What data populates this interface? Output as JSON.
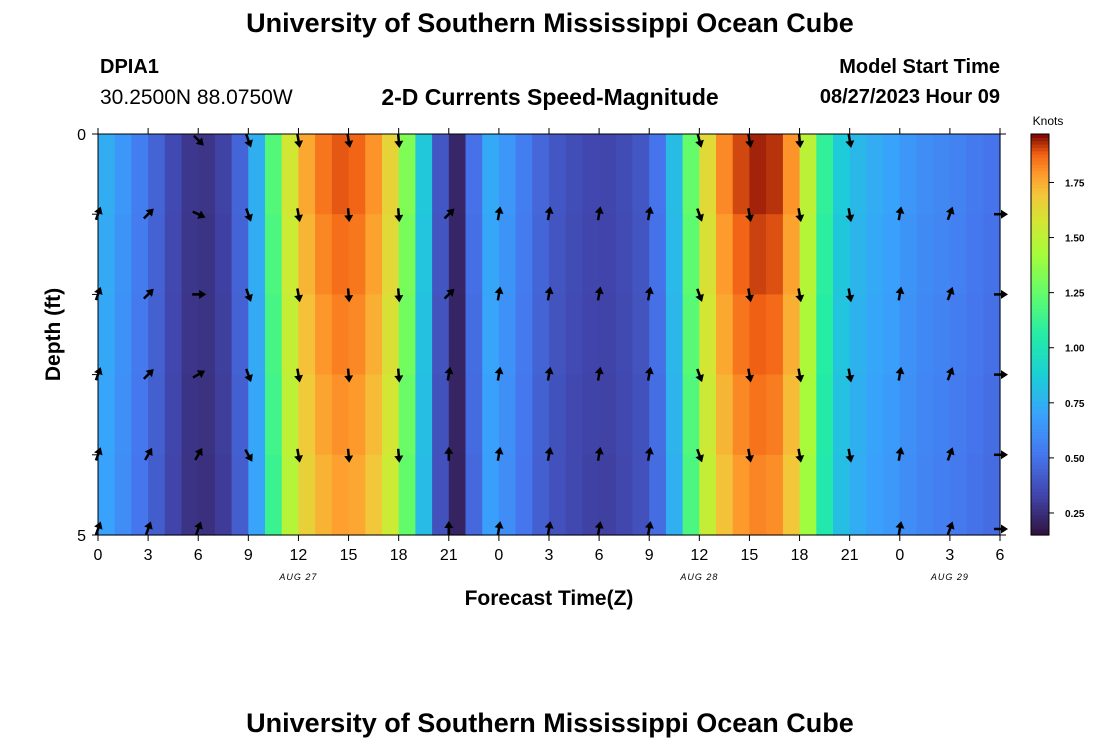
{
  "page": {
    "title_top": "University of Southern Mississippi Ocean Cube",
    "title_bottom": "University of Southern Mississippi Ocean Cube",
    "station_id": "DPIA1",
    "coordinates": "30.2500N  88.0750W",
    "subtitle": "2-D Currents Speed-Magnitude",
    "model_start_label": "Model Start Time",
    "model_start_value": "08/27/2023 Hour 09"
  },
  "colors": {
    "background": "#ffffff",
    "axis": "#000000",
    "arrow": "#000000"
  },
  "chart_data": {
    "type": "heatmap",
    "title": "2-D Currents Speed-Magnitude",
    "xlabel": "Forecast Time(Z)",
    "ylabel": "Depth (ft)",
    "x_ticks": [
      "0",
      "3",
      "6",
      "9",
      "12",
      "15",
      "18",
      "21",
      "0",
      "3",
      "6",
      "9",
      "12",
      "15",
      "18",
      "21",
      "0",
      "3",
      "6"
    ],
    "date_labels": [
      {
        "label": "AUG 27",
        "at_hour": 12
      },
      {
        "label": "AUG 28",
        "at_hour": 36
      },
      {
        "label": "AUG 29",
        "at_hour": 51
      }
    ],
    "x_range": [
      0,
      54
    ],
    "y_range": [
      0,
      5
    ],
    "y_ticks": [
      "0",
      "5"
    ],
    "depth_rows": 5,
    "colorbar": {
      "label": "Knots",
      "min": 0.15,
      "max": 1.97,
      "ticks": [
        0.25,
        0.5,
        0.75,
        1.0,
        1.25,
        1.5,
        1.75
      ],
      "tick_labels": [
        "0.25",
        "0.50",
        "0.75",
        "1.00",
        "1.25",
        "1.50",
        "1.75"
      ]
    },
    "speed_profile_knots": [
      [
        0,
        0.78
      ],
      [
        1,
        0.7
      ],
      [
        2,
        0.6
      ],
      [
        3,
        0.5
      ],
      [
        4,
        0.4
      ],
      [
        5,
        0.3
      ],
      [
        6,
        0.27
      ],
      [
        7,
        0.28
      ],
      [
        8,
        0.36
      ],
      [
        9,
        0.55
      ],
      [
        10,
        0.95
      ],
      [
        11,
        1.45
      ],
      [
        12,
        1.7
      ],
      [
        13,
        1.82
      ],
      [
        14,
        1.88
      ],
      [
        15,
        1.9
      ],
      [
        16,
        1.85
      ],
      [
        17,
        1.75
      ],
      [
        18,
        1.55
      ],
      [
        19,
        1.1
      ],
      [
        20,
        0.6
      ],
      [
        21,
        0.2
      ],
      [
        22,
        0.25
      ],
      [
        23,
        0.75
      ],
      [
        24,
        0.7
      ],
      [
        25,
        0.6
      ],
      [
        26,
        0.5
      ],
      [
        27,
        0.42
      ],
      [
        28,
        0.38
      ],
      [
        29,
        0.35
      ],
      [
        30,
        0.33
      ],
      [
        31,
        0.34
      ],
      [
        32,
        0.38
      ],
      [
        33,
        0.42
      ],
      [
        34,
        0.6
      ],
      [
        35,
        1.0
      ],
      [
        36,
        1.5
      ],
      [
        37,
        1.75
      ],
      [
        38,
        1.88
      ],
      [
        39,
        1.93
      ],
      [
        40,
        1.95
      ],
      [
        41,
        1.9
      ],
      [
        42,
        1.7
      ],
      [
        43,
        1.3
      ],
      [
        44,
        0.9
      ],
      [
        45,
        0.82
      ],
      [
        46,
        0.75
      ],
      [
        47,
        0.72
      ],
      [
        48,
        0.68
      ],
      [
        49,
        0.62
      ],
      [
        50,
        0.6
      ],
      [
        51,
        0.58
      ],
      [
        52,
        0.55
      ],
      [
        53,
        0.52
      ],
      [
        54,
        0.5
      ]
    ],
    "arrow_columns_hours": [
      0,
      3,
      6,
      9,
      12,
      15,
      18,
      21,
      24,
      27,
      30,
      33,
      36,
      39,
      42,
      45,
      48,
      51,
      54
    ],
    "arrow_rows_depth_ft": [
      0,
      1,
      2,
      3,
      4,
      5
    ],
    "arrow_directions_deg": [
      [
        null,
        null,
        135,
        160,
        170,
        170,
        175,
        null,
        null,
        null,
        null,
        null,
        165,
        170,
        175,
        170,
        null,
        null,
        null
      ],
      [
        20,
        45,
        115,
        160,
        170,
        175,
        175,
        45,
        10,
        10,
        10,
        10,
        160,
        170,
        170,
        170,
        10,
        20,
        90
      ],
      [
        20,
        45,
        90,
        160,
        170,
        175,
        175,
        45,
        10,
        10,
        10,
        10,
        160,
        170,
        170,
        170,
        10,
        20,
        90
      ],
      [
        20,
        45,
        60,
        160,
        170,
        175,
        175,
        10,
        10,
        10,
        10,
        10,
        160,
        170,
        170,
        170,
        10,
        20,
        90
      ],
      [
        20,
        30,
        30,
        150,
        170,
        175,
        175,
        0,
        10,
        10,
        10,
        10,
        160,
        170,
        170,
        170,
        10,
        20,
        90
      ],
      [
        20,
        20,
        20,
        null,
        null,
        null,
        null,
        0,
        10,
        10,
        10,
        10,
        null,
        null,
        null,
        null,
        10,
        20,
        90
      ]
    ]
  }
}
